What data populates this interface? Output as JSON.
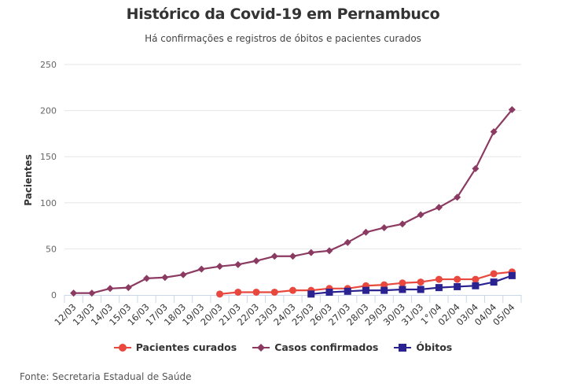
{
  "chart_data": {
    "type": "line",
    "title": "Histórico da Covid-19 em Pernambuco",
    "subtitle": "Há confirmações e registros de óbitos e pacientes curados",
    "xlabel": "",
    "ylabel": "Pacientes",
    "ylim": [
      0,
      250
    ],
    "yticks": [
      0,
      50,
      100,
      150,
      200,
      250
    ],
    "grid": true,
    "legend_position": "bottom",
    "categories": [
      "12/03",
      "13/03",
      "14/03",
      "15/03",
      "16/03",
      "17/03",
      "18/03",
      "19/03",
      "20/03",
      "21/03",
      "22/03",
      "23/03",
      "24/03",
      "25/03",
      "26/03",
      "27/03",
      "28/03",
      "29/03",
      "30/03",
      "31/03",
      "1°/04",
      "02/04",
      "03/04",
      "04/04",
      "05/04"
    ],
    "series": [
      {
        "name": "Pacientes curados",
        "color": "#e8483d",
        "marker": "circle",
        "values": [
          null,
          null,
          null,
          null,
          null,
          null,
          null,
          null,
          1,
          3,
          3,
          3,
          5,
          5,
          7,
          7,
          10,
          11,
          13,
          14,
          17,
          17,
          17,
          23,
          25
        ]
      },
      {
        "name": "Casos confirmados",
        "color": "#8b3a62",
        "marker": "diamond",
        "values": [
          2,
          2,
          7,
          8,
          18,
          19,
          22,
          28,
          31,
          33,
          37,
          42,
          42,
          46,
          48,
          57,
          68,
          73,
          77,
          87,
          95,
          106,
          137,
          177,
          201
        ]
      },
      {
        "name": "Óbitos",
        "color": "#2b2291",
        "marker": "square",
        "values": [
          null,
          null,
          null,
          null,
          null,
          null,
          null,
          null,
          null,
          null,
          null,
          null,
          null,
          1,
          3,
          4,
          5,
          5,
          6,
          6,
          8,
          9,
          10,
          14,
          21
        ]
      }
    ],
    "source": "Fonte: Secretaria Estadual de Saúde"
  }
}
